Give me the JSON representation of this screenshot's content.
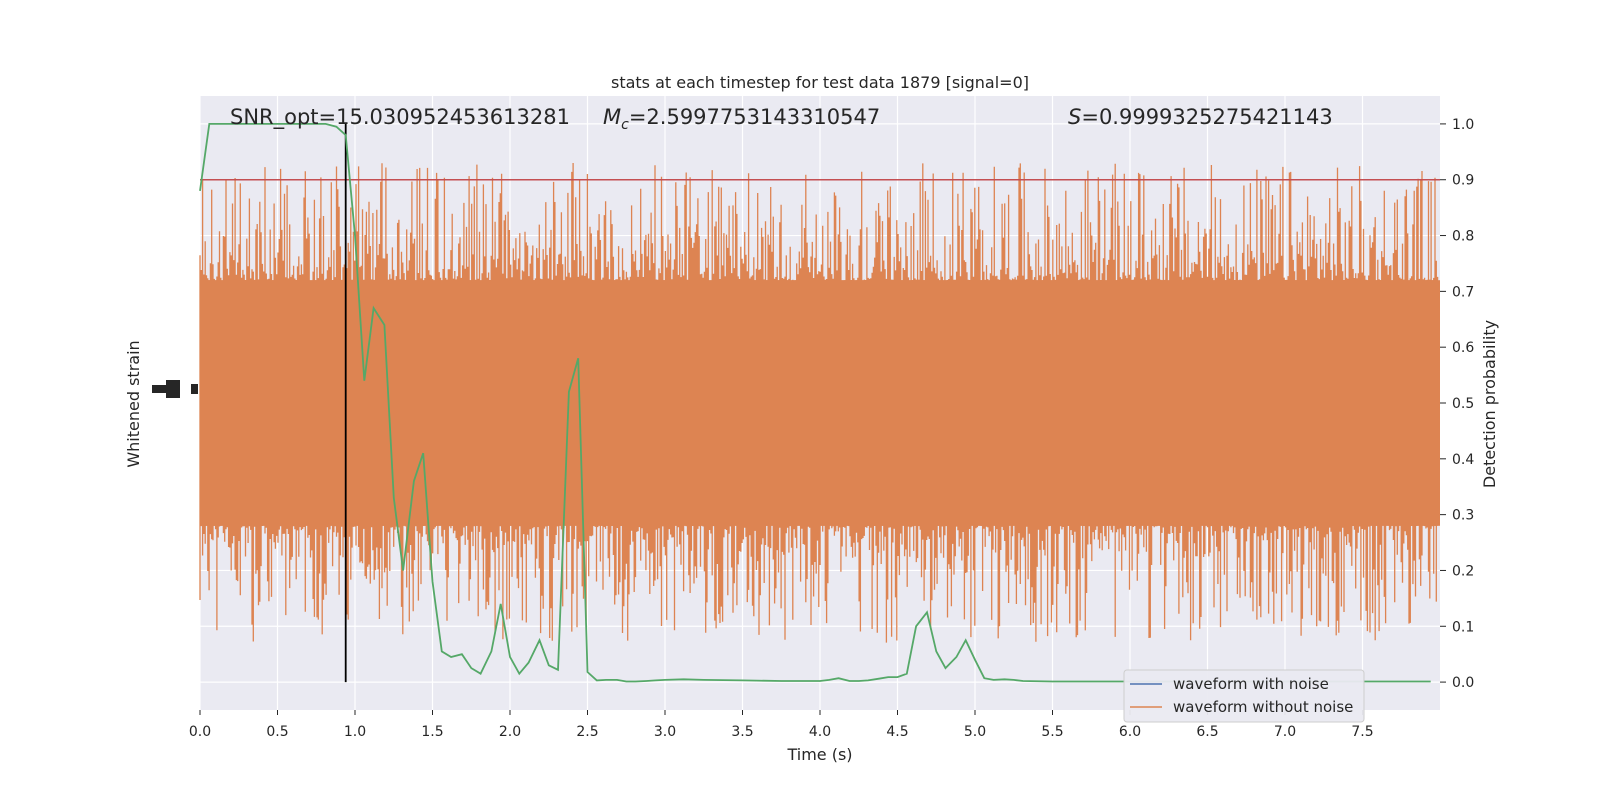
{
  "chart_data": {
    "type": "line",
    "title": "stats at each timestep for test data 1879 [signal=0]",
    "xlabel": "Time (s)",
    "ylabel_left": "Whitened strain",
    "ylabel_right": "Detection probability",
    "xlim": [
      0.0,
      8.0
    ],
    "ylim_right": [
      -0.05,
      1.05
    ],
    "x_ticks": [
      "0.0",
      "0.5",
      "1.0",
      "1.5",
      "2.0",
      "2.5",
      "3.0",
      "3.5",
      "4.0",
      "4.5",
      "5.0",
      "5.5",
      "6.0",
      "6.5",
      "7.0",
      "7.5"
    ],
    "y_right_ticks": [
      "0.0",
      "0.1",
      "0.2",
      "0.3",
      "0.4",
      "0.5",
      "0.6",
      "0.7",
      "0.8",
      "0.9",
      "1.0"
    ],
    "grid": true,
    "legend_placement": "lower-right",
    "annotations": {
      "snr": "SNR_opt=15.030952453613281",
      "mc_symbol": "M",
      "mc_sub": "c",
      "mc_value": "=2.5997753143310547",
      "s_symbol": "S",
      "s_value": "=0.9999325275421143"
    },
    "threshold": 0.9,
    "marker_time": 0.94,
    "series": [
      {
        "name": "waveform with noise",
        "color": "#4c72b0",
        "note_only_in_legend": true
      },
      {
        "name": "waveform without noise",
        "color": "#dd8452",
        "band_center": 0.5,
        "band_core_half_width": 0.22,
        "band_max_half_width": 0.43
      },
      {
        "name": "",
        "color": "#55a868",
        "x": [
          0.0,
          0.06,
          0.12,
          0.19,
          0.25,
          0.31,
          0.38,
          0.44,
          0.5,
          0.56,
          0.62,
          0.69,
          0.75,
          0.81,
          0.88,
          0.94,
          1.0,
          1.06,
          1.12,
          1.19,
          1.25,
          1.31,
          1.38,
          1.44,
          1.5,
          1.56,
          1.62,
          1.69,
          1.75,
          1.81,
          1.88,
          1.94,
          2.0,
          2.06,
          2.12,
          2.19,
          2.25,
          2.31,
          2.38,
          2.44,
          2.5,
          2.56,
          2.62,
          2.69,
          2.75,
          2.81,
          2.88,
          2.94,
          3.0,
          3.12,
          3.25,
          3.5,
          3.75,
          4.0,
          4.06,
          4.12,
          4.19,
          4.25,
          4.31,
          4.38,
          4.44,
          4.5,
          4.56,
          4.62,
          4.69,
          4.75,
          4.81,
          4.88,
          4.94,
          5.0,
          5.06,
          5.12,
          5.19,
          5.25,
          5.31,
          5.5,
          6.0,
          6.5,
          7.0,
          7.5,
          7.94
        ],
        "y": [
          0.88,
          1.0,
          1.0,
          1.0,
          1.0,
          1.0,
          1.0,
          1.0,
          1.0,
          1.0,
          1.0,
          1.0,
          1.0,
          1.0,
          0.995,
          0.98,
          0.8,
          0.54,
          0.67,
          0.64,
          0.33,
          0.2,
          0.36,
          0.41,
          0.18,
          0.055,
          0.045,
          0.05,
          0.025,
          0.015,
          0.055,
          0.14,
          0.045,
          0.015,
          0.035,
          0.075,
          0.03,
          0.022,
          0.52,
          0.58,
          0.018,
          0.003,
          0.004,
          0.004,
          0.001,
          0.001,
          0.002,
          0.003,
          0.004,
          0.005,
          0.004,
          0.003,
          0.002,
          0.002,
          0.004,
          0.007,
          0.002,
          0.002,
          0.003,
          0.006,
          0.009,
          0.009,
          0.015,
          0.1,
          0.125,
          0.055,
          0.025,
          0.045,
          0.075,
          0.04,
          0.007,
          0.004,
          0.005,
          0.004,
          0.002,
          0.001,
          0.001,
          0.001,
          0.001,
          0.001,
          0.001
        ]
      },
      {
        "name": "",
        "color": "#c44e52",
        "y_const": 0.9
      }
    ]
  }
}
